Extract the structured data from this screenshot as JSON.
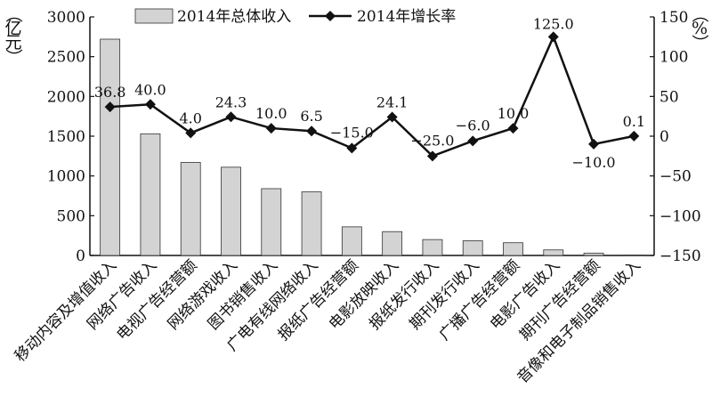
{
  "chart_data": {
    "type": "bar",
    "categories": [
      "移动内容及增值收入",
      "网络广告收入",
      "电视广告经营额",
      "网络游戏收入",
      "图书销售收入",
      "广电有线网络收入",
      "报纸广告经营额",
      "电影放映收入",
      "报纸发行收入",
      "期刊发行收入",
      "广播广告经营额",
      "电影广告收入",
      "期刊广告经营额",
      "音像和电子制品销售收入"
    ],
    "series": [
      {
        "name": "2014年总体收入",
        "kind": "bar",
        "axis": "left",
        "values": [
          2720,
          1530,
          1170,
          1110,
          840,
          800,
          360,
          300,
          200,
          185,
          160,
          70,
          30,
          5
        ]
      },
      {
        "name": "2014年增长率",
        "kind": "line",
        "axis": "right",
        "values": [
          36.8,
          40.0,
          4.0,
          24.3,
          10.0,
          6.5,
          -15.0,
          24.1,
          -25.0,
          -6.0,
          10.0,
          125.0,
          -10.0,
          0.1
        ],
        "labels": [
          "36.8",
          "40.0",
          "4.0",
          "24.3",
          "10.0",
          "6.5",
          "−15.0",
          "24.1",
          "−25.0",
          "−6.0",
          "10.0",
          "125.0",
          "−10.0",
          "0.1"
        ]
      }
    ],
    "y_left": {
      "label_chars": [
        "（",
        "亿",
        "元",
        "）"
      ],
      "ylim": [
        0,
        3000
      ],
      "ticks": [
        0,
        500,
        1000,
        1500,
        2000,
        2500,
        3000
      ],
      "tick_labels": [
        "0",
        "500",
        "1000",
        "1500",
        "2000",
        "2500",
        "3000"
      ]
    },
    "y_right": {
      "label_chars": [
        "（",
        "%",
        "）"
      ],
      "ylim": [
        -150,
        150
      ],
      "ticks": [
        -150,
        -100,
        -50,
        0,
        50,
        100,
        150
      ],
      "tick_labels": [
        "−150",
        "−100",
        "−50",
        "0",
        "50",
        "100",
        "150"
      ]
    },
    "legend": {
      "placement": "top",
      "bar_label": "2014年总体收入",
      "line_label": "2014年增长率"
    },
    "grid": false,
    "colors": {
      "bar_fill": "#d3d3d3",
      "bar_stroke": "#333333",
      "line": "#111111",
      "marker": "#111111"
    }
  }
}
